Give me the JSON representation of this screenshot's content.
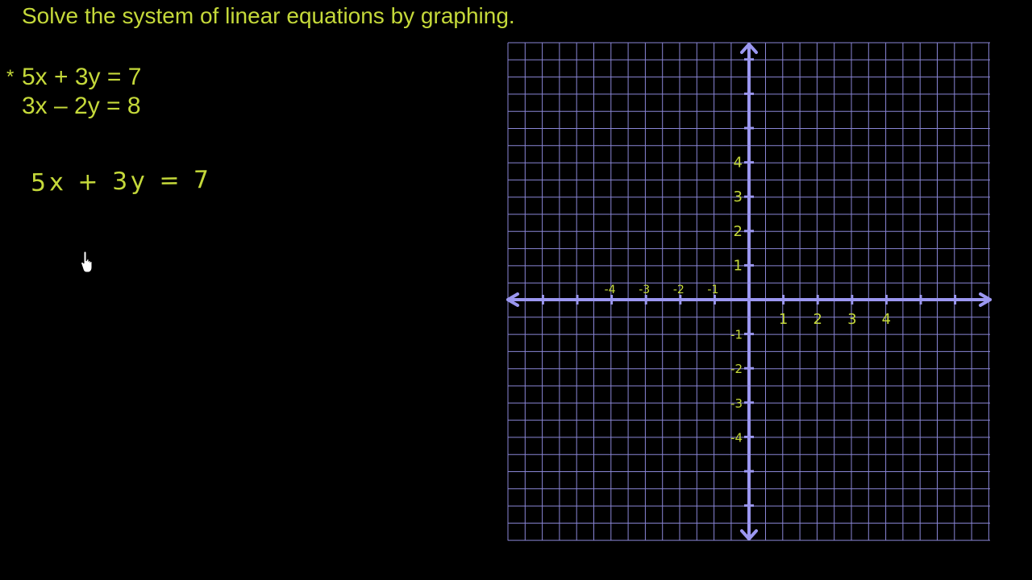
{
  "title": "Solve the system of linear equations by graphing.",
  "equations": [
    "5x + 3y = 7",
    "3x – 2y = 8"
  ],
  "star_mark": "*",
  "handwritten_equation": "5x + 3y = 7",
  "graph": {
    "x_tick_labels": [
      {
        "value": -4,
        "label": "-4"
      },
      {
        "value": -3,
        "label": "-3"
      },
      {
        "value": -2,
        "label": "-2"
      },
      {
        "value": -1,
        "label": "-1"
      },
      {
        "value": 1,
        "label": "1"
      },
      {
        "value": 2,
        "label": "2"
      },
      {
        "value": 3,
        "label": "3"
      },
      {
        "value": 4,
        "label": "4"
      }
    ],
    "y_tick_labels": [
      {
        "value": 4,
        "label": "4"
      },
      {
        "value": 3,
        "label": "3"
      },
      {
        "value": 2,
        "label": "2"
      },
      {
        "value": 1,
        "label": "1"
      },
      {
        "value": -1,
        "label": "-1"
      },
      {
        "value": -2,
        "label": "-2"
      },
      {
        "value": -3,
        "label": "-3"
      },
      {
        "value": -4,
        "label": "-4"
      }
    ],
    "colors": {
      "grid": "#8a86d6",
      "axis": "#9b97f0",
      "label": "#c5d93a"
    }
  },
  "icons": {
    "cursor": "hand-pointer-icon"
  }
}
